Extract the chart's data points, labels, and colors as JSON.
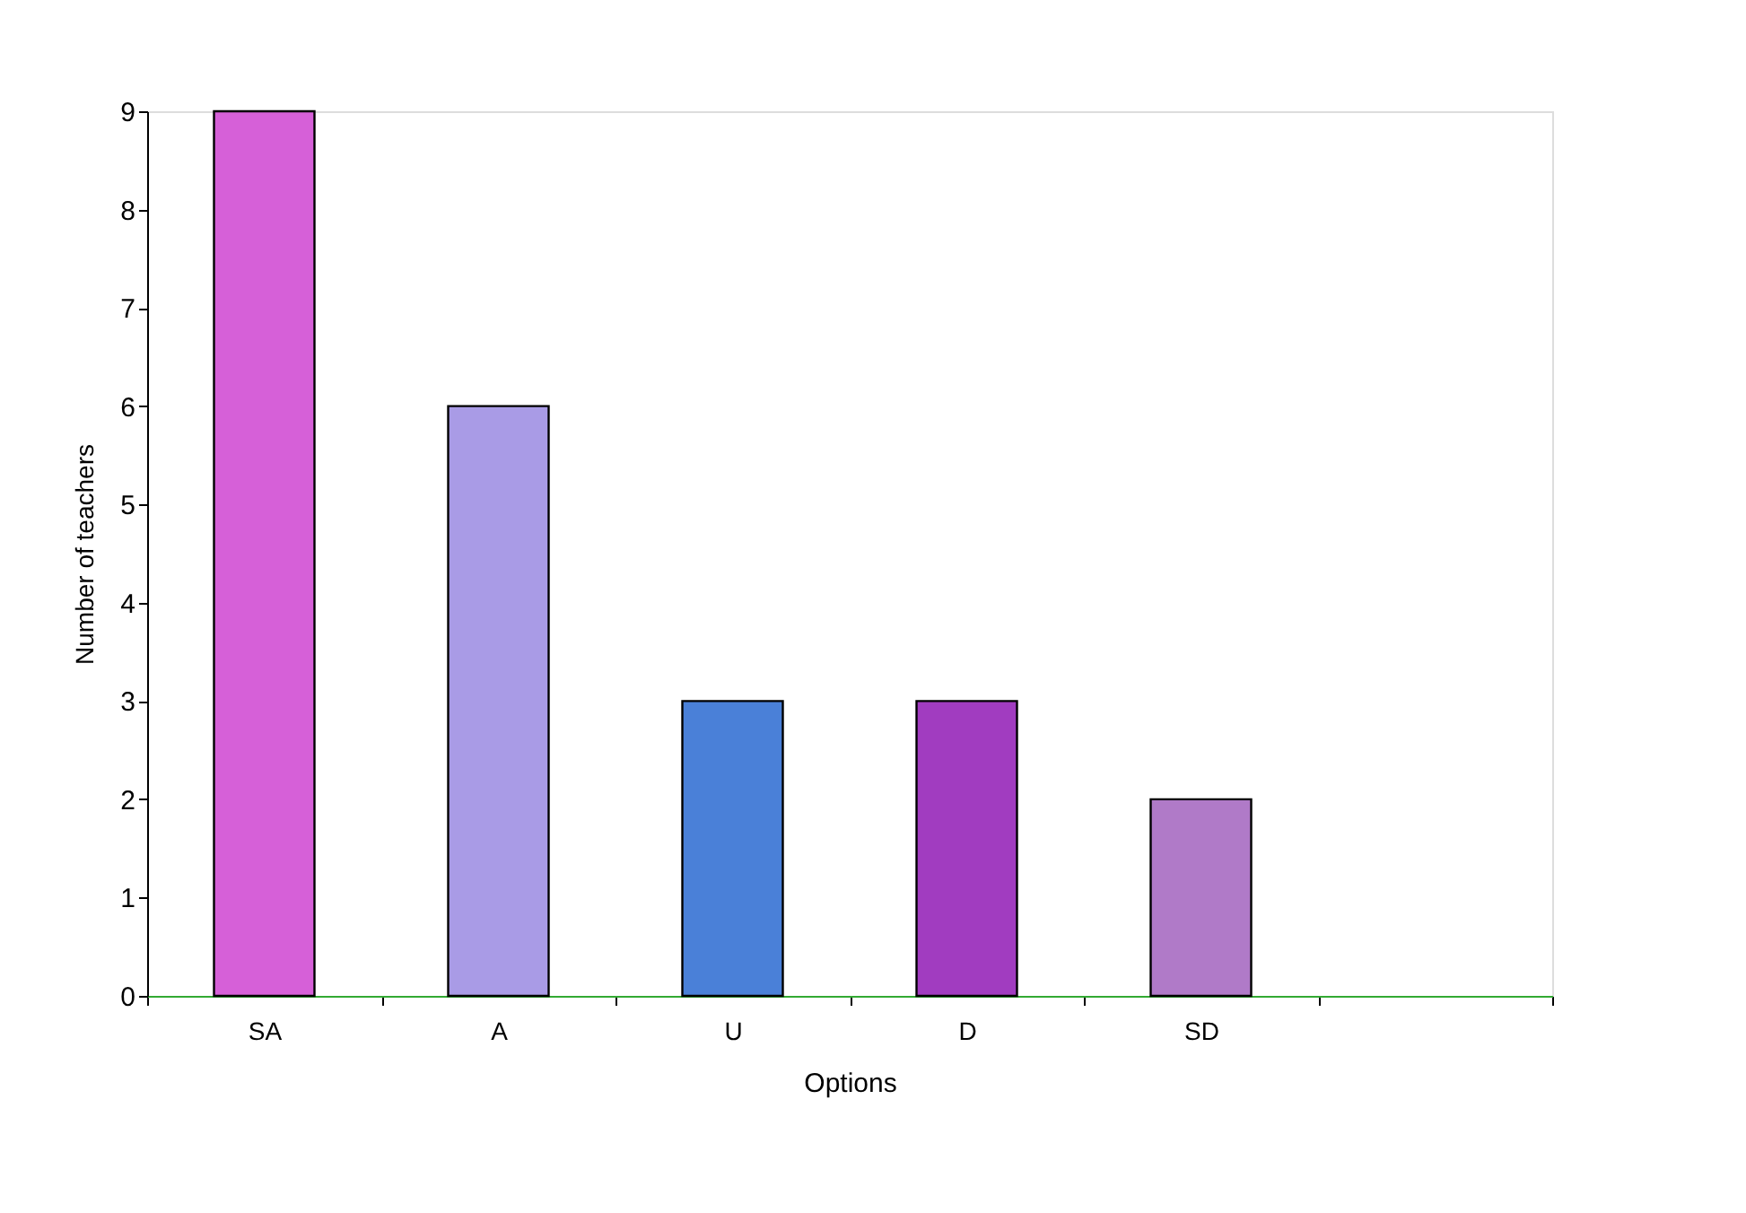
{
  "chart_data": {
    "type": "bar",
    "xlabel": "Options",
    "ylabel": "Number of teachers",
    "categories": [
      "SA",
      "A",
      "U",
      "D",
      "SD",
      null
    ],
    "values": [
      9,
      6,
      3,
      3,
      2,
      null
    ],
    "colors": [
      "#d660d8",
      "#a99be6",
      "#4a80d8",
      "#a13cc0",
      "#b07ac8",
      "#cccccc"
    ],
    "ylim": [
      0,
      9
    ],
    "yticks": [
      0,
      1,
      2,
      3,
      4,
      5,
      6,
      7,
      8,
      9
    ],
    "grid": false,
    "legend": false
  }
}
